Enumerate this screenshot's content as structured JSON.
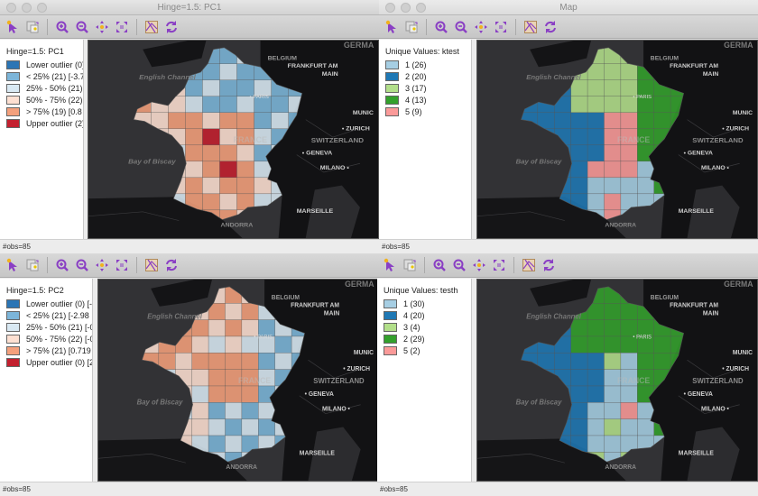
{
  "windows": [
    {
      "id": "pc1",
      "title": "Hinge=1.5: PC1",
      "active": true,
      "legend": {
        "title": "Hinge=1.5: PC1",
        "items": [
          {
            "label": "Lower outlier (0)",
            "color": "#2b75b5"
          },
          {
            "label": "< 25% (21)  [-3.7",
            "color": "#7cb5d9"
          },
          {
            "label": "25% - 50% (21)",
            "color": "#d9e9f3"
          },
          {
            "label": "50% - 75% (22)",
            "color": "#fde0d2"
          },
          {
            "label": "> 75% (19)  [0.8",
            "color": "#f4a07c"
          },
          {
            "label": "Upper outlier (2)",
            "color": "#c3202f"
          }
        ]
      },
      "status": "#obs=85"
    },
    {
      "id": "ktest",
      "title": "Map",
      "active": false,
      "legend": {
        "title": "Unique Values: ktest",
        "items": [
          {
            "label": "1 (26)",
            "color": "#a6cee3"
          },
          {
            "label": "2 (20)",
            "color": "#1f78b4"
          },
          {
            "label": "3 (17)",
            "color": "#b2df8a"
          },
          {
            "label": "4 (13)",
            "color": "#33a02c"
          },
          {
            "label": "5 (9)",
            "color": "#fb9a99"
          }
        ]
      },
      "status": "#obs=85"
    },
    {
      "id": "pc2",
      "title": "",
      "active": false,
      "legend": {
        "title": "Hinge=1.5: PC2",
        "items": [
          {
            "label": "Lower outlier (0)  [-i",
            "color": "#2b75b5"
          },
          {
            "label": "< 25% (21)  [-2.98 :",
            "color": "#7cb5d9"
          },
          {
            "label": "25% - 50% (21)  [-0",
            "color": "#d9e9f3"
          },
          {
            "label": "50% - 75% (22)  [-0",
            "color": "#fde0d2"
          },
          {
            "label": "> 75% (21)  [0.719 :",
            "color": "#f4a07c"
          },
          {
            "label": "Upper outlier (0)  [2",
            "color": "#c3202f"
          }
        ]
      },
      "status": "#obs=85"
    },
    {
      "id": "testh",
      "title": "",
      "active": false,
      "legend": {
        "title": "Unique Values: testh",
        "items": [
          {
            "label": "1 (30)",
            "color": "#a6cee3"
          },
          {
            "label": "4 (20)",
            "color": "#1f78b4"
          },
          {
            "label": "3 (4)",
            "color": "#b2df8a"
          },
          {
            "label": "2 (29)",
            "color": "#33a02c"
          },
          {
            "label": "5 (2)",
            "color": "#fb9a99"
          }
        ]
      },
      "status": "#obs=85"
    }
  ],
  "toolbar": {
    "select": "Select tool",
    "copy": "Copy image",
    "zoom_in": "Zoom in",
    "zoom_out": "Zoom out",
    "pan": "Pan",
    "fit": "Fit to window",
    "basemap": "Basemap",
    "refresh": "Refresh"
  },
  "map_labels": {
    "english_channel": "English Channel",
    "bay_of_biscay": "Bay of Biscay",
    "belgium": "BELGIUM",
    "frankfurt": "FRANKFURT AM",
    "main": "MAIN",
    "germany": "GERMA",
    "munich": "MUNIC",
    "zurich": "ZURICH",
    "switzerland": "SWITZERLAND",
    "geneva": "GENEVA",
    "milano": "MILANO",
    "marseille": "MARSEILLE",
    "paris": "PARIS",
    "france": "FRANCE",
    "andorra": "ANDORRA"
  }
}
